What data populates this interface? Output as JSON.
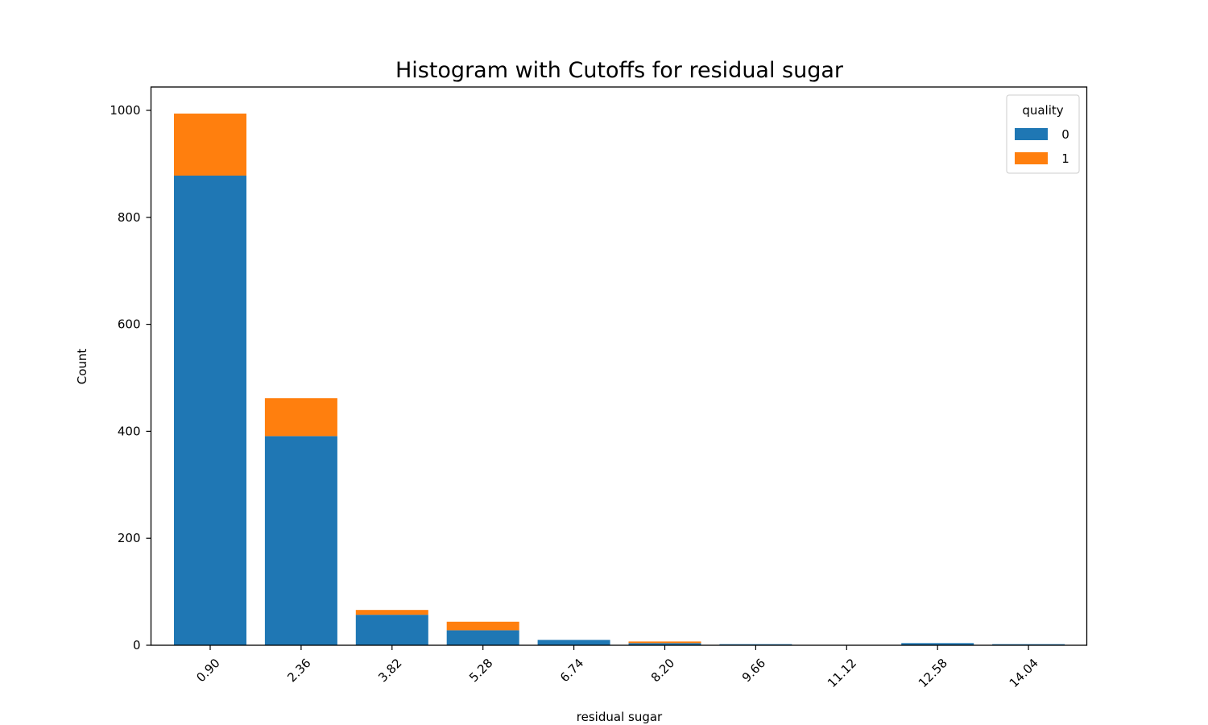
{
  "chart_data": {
    "type": "bar",
    "stacked": true,
    "title": "Histogram with Cutoffs for residual sugar",
    "xlabel": "residual sugar",
    "ylabel": "Count",
    "ylim": [
      0,
      1045
    ],
    "yticks": [
      0,
      200,
      400,
      600,
      800,
      1000
    ],
    "categories": [
      "0.90",
      "2.36",
      "3.82",
      "5.28",
      "6.74",
      "8.20",
      "9.66",
      "11.12",
      "12.58",
      "14.04"
    ],
    "legend": {
      "title": "quality",
      "placement": "top-right"
    },
    "series": [
      {
        "name": "0",
        "color": "#1f77b4",
        "values": [
          878,
          391,
          57,
          28,
          10,
          4,
          2,
          0,
          4,
          2
        ]
      },
      {
        "name": "1",
        "color": "#ff7f0e",
        "values": [
          116,
          71,
          9,
          16,
          0,
          3,
          0,
          0,
          0,
          0
        ]
      }
    ]
  }
}
